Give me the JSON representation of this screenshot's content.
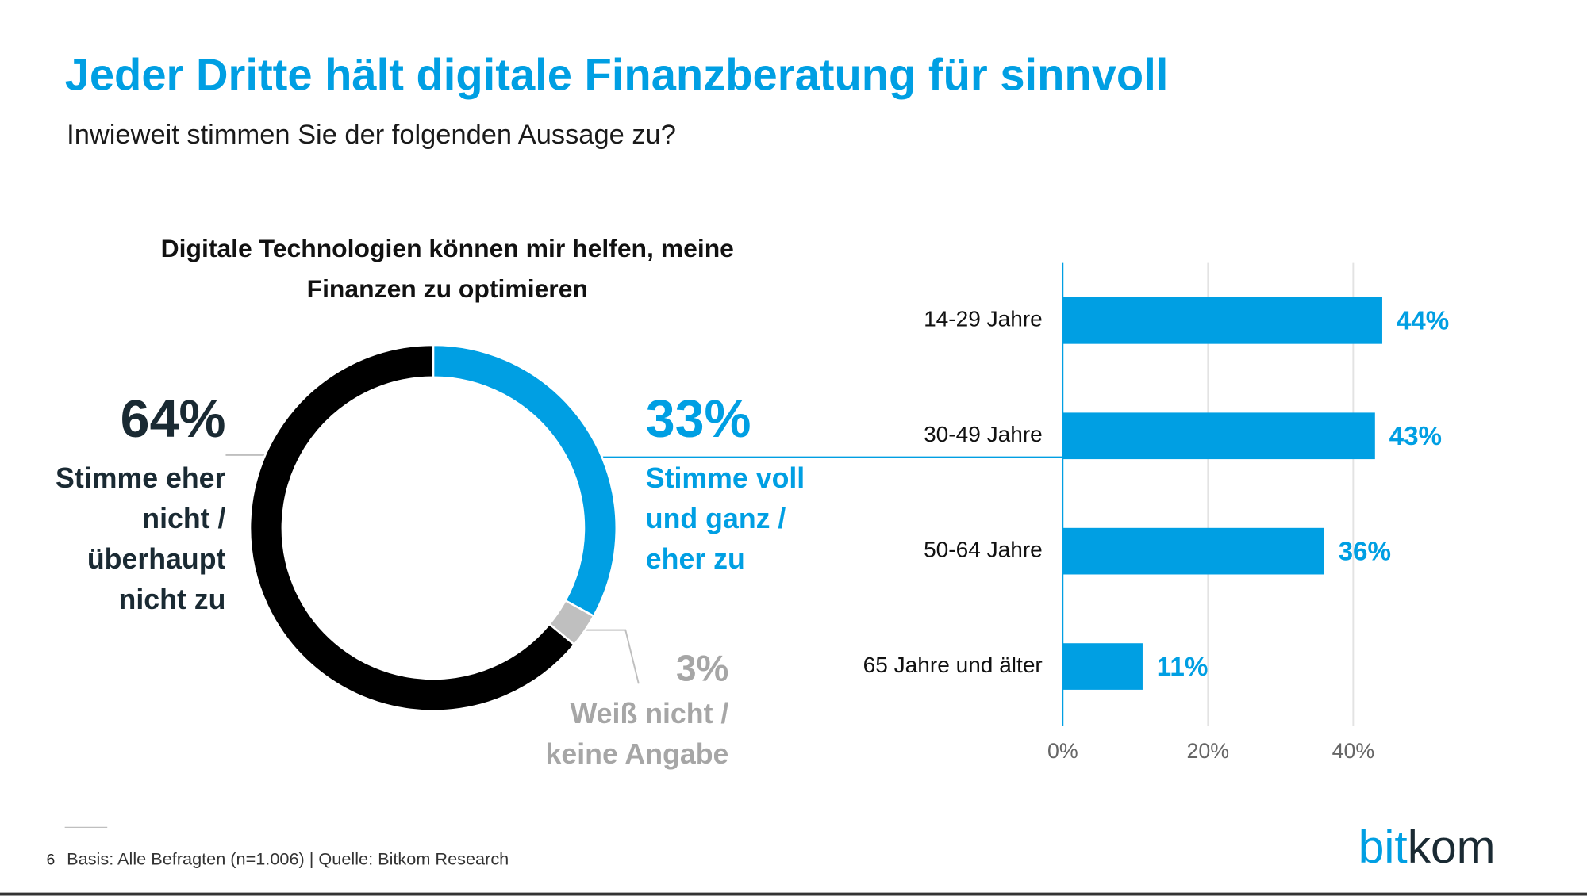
{
  "title": "Jeder Dritte hält digitale Finanzberatung für sinnvoll",
  "subtitle": "Inwieweit stimmen Sie der folgenden Aussage zu?",
  "chart_data": [
    {
      "type": "donut",
      "title": "Digitale Technologien können mir helfen, meine Finanzen zu optimieren",
      "categories": [
        "Stimme voll und ganz / eher zu",
        "Weiß nicht / keine Angabe",
        "Stimme eher nicht / überhaupt nicht zu"
      ],
      "values": [
        33,
        3,
        64
      ],
      "value_labels": [
        "33%",
        "3%",
        "64%"
      ],
      "colors": [
        "#009fe3",
        "#bfbfbf",
        "#000000"
      ]
    },
    {
      "type": "bar",
      "orientation": "horizontal",
      "categories": [
        "14-29 Jahre",
        "30-49 Jahre",
        "50-64 Jahre",
        "65 Jahre und älter"
      ],
      "values": [
        44,
        43,
        36,
        11
      ],
      "value_labels": [
        "44%",
        "43%",
        "36%",
        "11%"
      ],
      "color": "#009fe3",
      "xlim": [
        0,
        48
      ],
      "xticks": [
        {
          "value": 0,
          "label": "0%"
        },
        {
          "value": 20,
          "label": "20%"
        },
        {
          "value": 40,
          "label": "40%"
        }
      ],
      "grid": true
    }
  ],
  "footer": {
    "page": "6",
    "source": "Basis: Alle Befragten (n=1.006) | Quelle: Bitkom Research"
  },
  "logo": [
    "bit",
    "kom"
  ]
}
